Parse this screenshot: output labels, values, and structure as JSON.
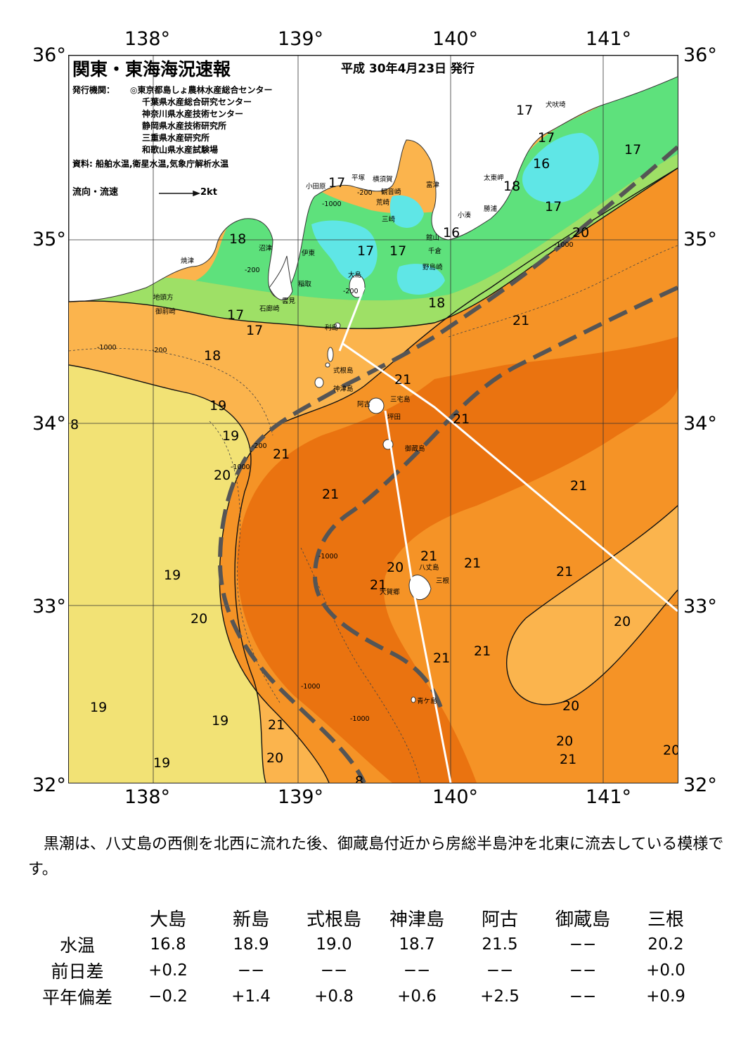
{
  "title": "関東・東海海況速報",
  "issue_date": "平成 30年4月23日 発行",
  "publisher_label": "発行機関：",
  "publishers": [
    "◎東京都島しょ農林水産総合センター",
    "千葉県水産総合研究センター",
    "神奈川県水産技術センター",
    "静岡県水産技術研究所",
    "三重県水産研究所",
    "和歌山県水産試験場"
  ],
  "sources": "資料: 船舶水温,衛星水温,気象庁解析水温",
  "legend": {
    "label": "流向・流速",
    "speed": "2kt"
  },
  "axes": {
    "lon_labels": [
      "138°",
      "139°",
      "140°",
      "141°"
    ],
    "lat_labels": [
      "36°",
      "35°",
      "34°",
      "33°",
      "32°"
    ]
  },
  "place_names": [
    "犬吠埼",
    "太東岬",
    "勝浦",
    "小湊",
    "富津",
    "館山",
    "千倉",
    "野島崎",
    "横須賀",
    "観音崎",
    "荒崎",
    "三崎",
    "平塚",
    "小田原",
    "沼津",
    "伊東",
    "焼津",
    "地頭方",
    "御前崎",
    "稲取",
    "石廊崎",
    "雲見",
    "大島",
    "利島",
    "式根島",
    "神津島",
    "阿古",
    "坪田",
    "三宅島",
    "御蔵島",
    "八丈島",
    "三根",
    "大賀郷",
    "青ケ島"
  ],
  "contour_labels": [
    "17",
    "17",
    "17",
    "16",
    "18",
    "17",
    "17",
    "17",
    "17",
    "16",
    "20",
    "18",
    "17",
    "17",
    "18",
    "21",
    "18",
    "19",
    "21",
    "21",
    "19",
    "20",
    "21",
    "21",
    "21",
    "21",
    "20",
    "21",
    "21",
    "19",
    "20",
    "20",
    "21",
    "21",
    "20",
    "21",
    "20",
    "19",
    "19",
    "21",
    "20",
    "21",
    "20",
    "19",
    "8",
    "8"
  ],
  "depth_labels": [
    "-1000",
    "-200",
    "-1000",
    "-200",
    "-1000",
    "-200",
    "-1000",
    "-1000",
    "-1000",
    "-200",
    "-200",
    "-1000"
  ],
  "colors": {
    "land": "#ffffff",
    "sst_16": "#5fe6e6",
    "sst_17": "#5ee17c",
    "sst_18": "#9ee066",
    "sst_19": "#f2e275",
    "sst_20": "#fbb44d",
    "sst_21": "#f59326",
    "sst_22": "#ea7310",
    "kuroshio_axis": "#555555",
    "ship_track": "#ffffff"
  },
  "summary": "黒潮は、八丈島の西側を北西に流れた後、御蔵島付近から房総半島沖を北東に流去している模様です。",
  "table": {
    "columns": [
      "大島",
      "新島",
      "式根島",
      "神津島",
      "阿古",
      "御蔵島",
      "三根"
    ],
    "rows": [
      {
        "label": "水温",
        "values": [
          "16.8",
          "18.9",
          "19.0",
          "18.7",
          "21.5",
          "−−",
          "20.2"
        ]
      },
      {
        "label": "前日差",
        "values": [
          "+0.2",
          "−−",
          "−−",
          "−−",
          "−−",
          "−−",
          "+0.0"
        ]
      },
      {
        "label": "平年偏差",
        "values": [
          "−0.2",
          "+1.4",
          "+0.8",
          "+0.6",
          "+2.5",
          "−−",
          "+0.9"
        ]
      }
    ]
  }
}
